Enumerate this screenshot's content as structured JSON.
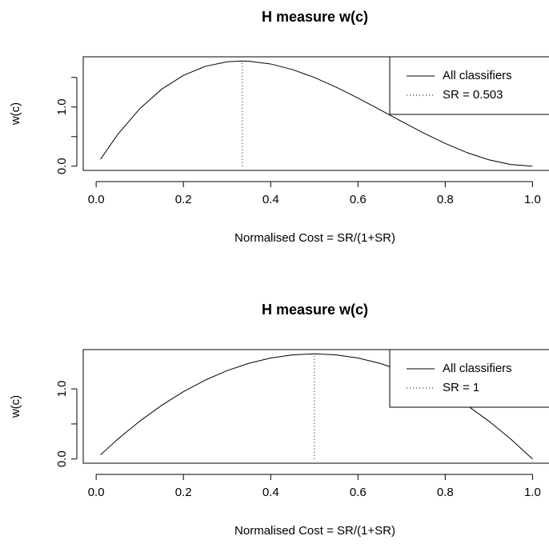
{
  "chart_data": [
    {
      "type": "line",
      "title": "H measure w(c)",
      "x_label": "Normalised Cost = SR/(1+SR)",
      "y_label": "w(c)",
      "xlim": [
        -0.0296,
        1.0396
      ],
      "ylim": [
        -0.071,
        1.849
      ],
      "xticks": [
        {
          "value": 0,
          "label": "0.0"
        },
        {
          "value": 0.2,
          "label": "0.2"
        },
        {
          "value": 0.4,
          "label": "0.4"
        },
        {
          "value": 0.6,
          "label": "0.6"
        },
        {
          "value": 0.8,
          "label": "0.8"
        },
        {
          "value": 1,
          "label": "1.0"
        }
      ],
      "yticks": [
        {
          "value": 0,
          "label": "0.0"
        },
        {
          "value": 0.5,
          "label": null
        },
        {
          "value": 1,
          "label": "1.0"
        },
        {
          "value": 1.5,
          "label": null
        }
      ],
      "legend": "topright",
      "series": [
        {
          "name": "All classifiers",
          "color": "#000000",
          "dash": "solid",
          "x": [
            0.01,
            0.05,
            0.1,
            0.15,
            0.2,
            0.25,
            0.3,
            0.3333,
            0.35,
            0.4,
            0.45,
            0.5,
            0.55,
            0.6,
            0.65,
            0.7,
            0.75,
            0.8,
            0.85,
            0.9,
            0.95,
            1.0
          ],
          "values": [
            0.1176,
            0.5415,
            0.972,
            1.3005,
            1.536,
            1.6875,
            1.764,
            1.778,
            1.7745,
            1.728,
            1.6335,
            1.5,
            1.3365,
            1.152,
            0.9555,
            0.756,
            0.5625,
            0.384,
            0.2295,
            0.108,
            0.0285,
            0
          ]
        },
        {
          "name": "SR =  0.503",
          "color": "#000000",
          "dash": "dotted",
          "x": [
            0.3347,
            0.3347
          ],
          "values": [
            0,
            1.778
          ]
        }
      ]
    },
    {
      "type": "line",
      "title": "H measure w(c)",
      "x_label": "Normalised Cost = SR/(1+SR)",
      "y_label": "w(c)",
      "xlim": [
        -0.0296,
        1.0396
      ],
      "ylim": [
        -0.06,
        1.56
      ],
      "xticks": [
        {
          "value": 0,
          "label": "0.0"
        },
        {
          "value": 0.2,
          "label": "0.2"
        },
        {
          "value": 0.4,
          "label": "0.4"
        },
        {
          "value": 0.6,
          "label": "0.6"
        },
        {
          "value": 0.8,
          "label": "0.8"
        },
        {
          "value": 1,
          "label": "1.0"
        }
      ],
      "yticks": [
        {
          "value": 0,
          "label": "0.0"
        },
        {
          "value": 0.5,
          "label": null
        },
        {
          "value": 1,
          "label": "1.0"
        }
      ],
      "legend": "topright",
      "series": [
        {
          "name": "All classifiers",
          "color": "#000000",
          "dash": "solid",
          "x": [
            0.01,
            0.05,
            0.1,
            0.15,
            0.2,
            0.25,
            0.3,
            0.35,
            0.4,
            0.45,
            0.5,
            0.55,
            0.6,
            0.65,
            0.7,
            0.75,
            0.8,
            0.85,
            0.9,
            0.95,
            1.0
          ],
          "values": [
            0.0594,
            0.285,
            0.54,
            0.765,
            0.96,
            1.125,
            1.26,
            1.365,
            1.44,
            1.485,
            1.5,
            1.485,
            1.44,
            1.365,
            1.26,
            1.125,
            0.96,
            0.765,
            0.54,
            0.285,
            0
          ]
        },
        {
          "name": "SR =  1",
          "color": "#000000",
          "dash": "dotted",
          "x": [
            0.5,
            0.5
          ],
          "values": [
            0,
            1.5
          ]
        }
      ]
    }
  ]
}
